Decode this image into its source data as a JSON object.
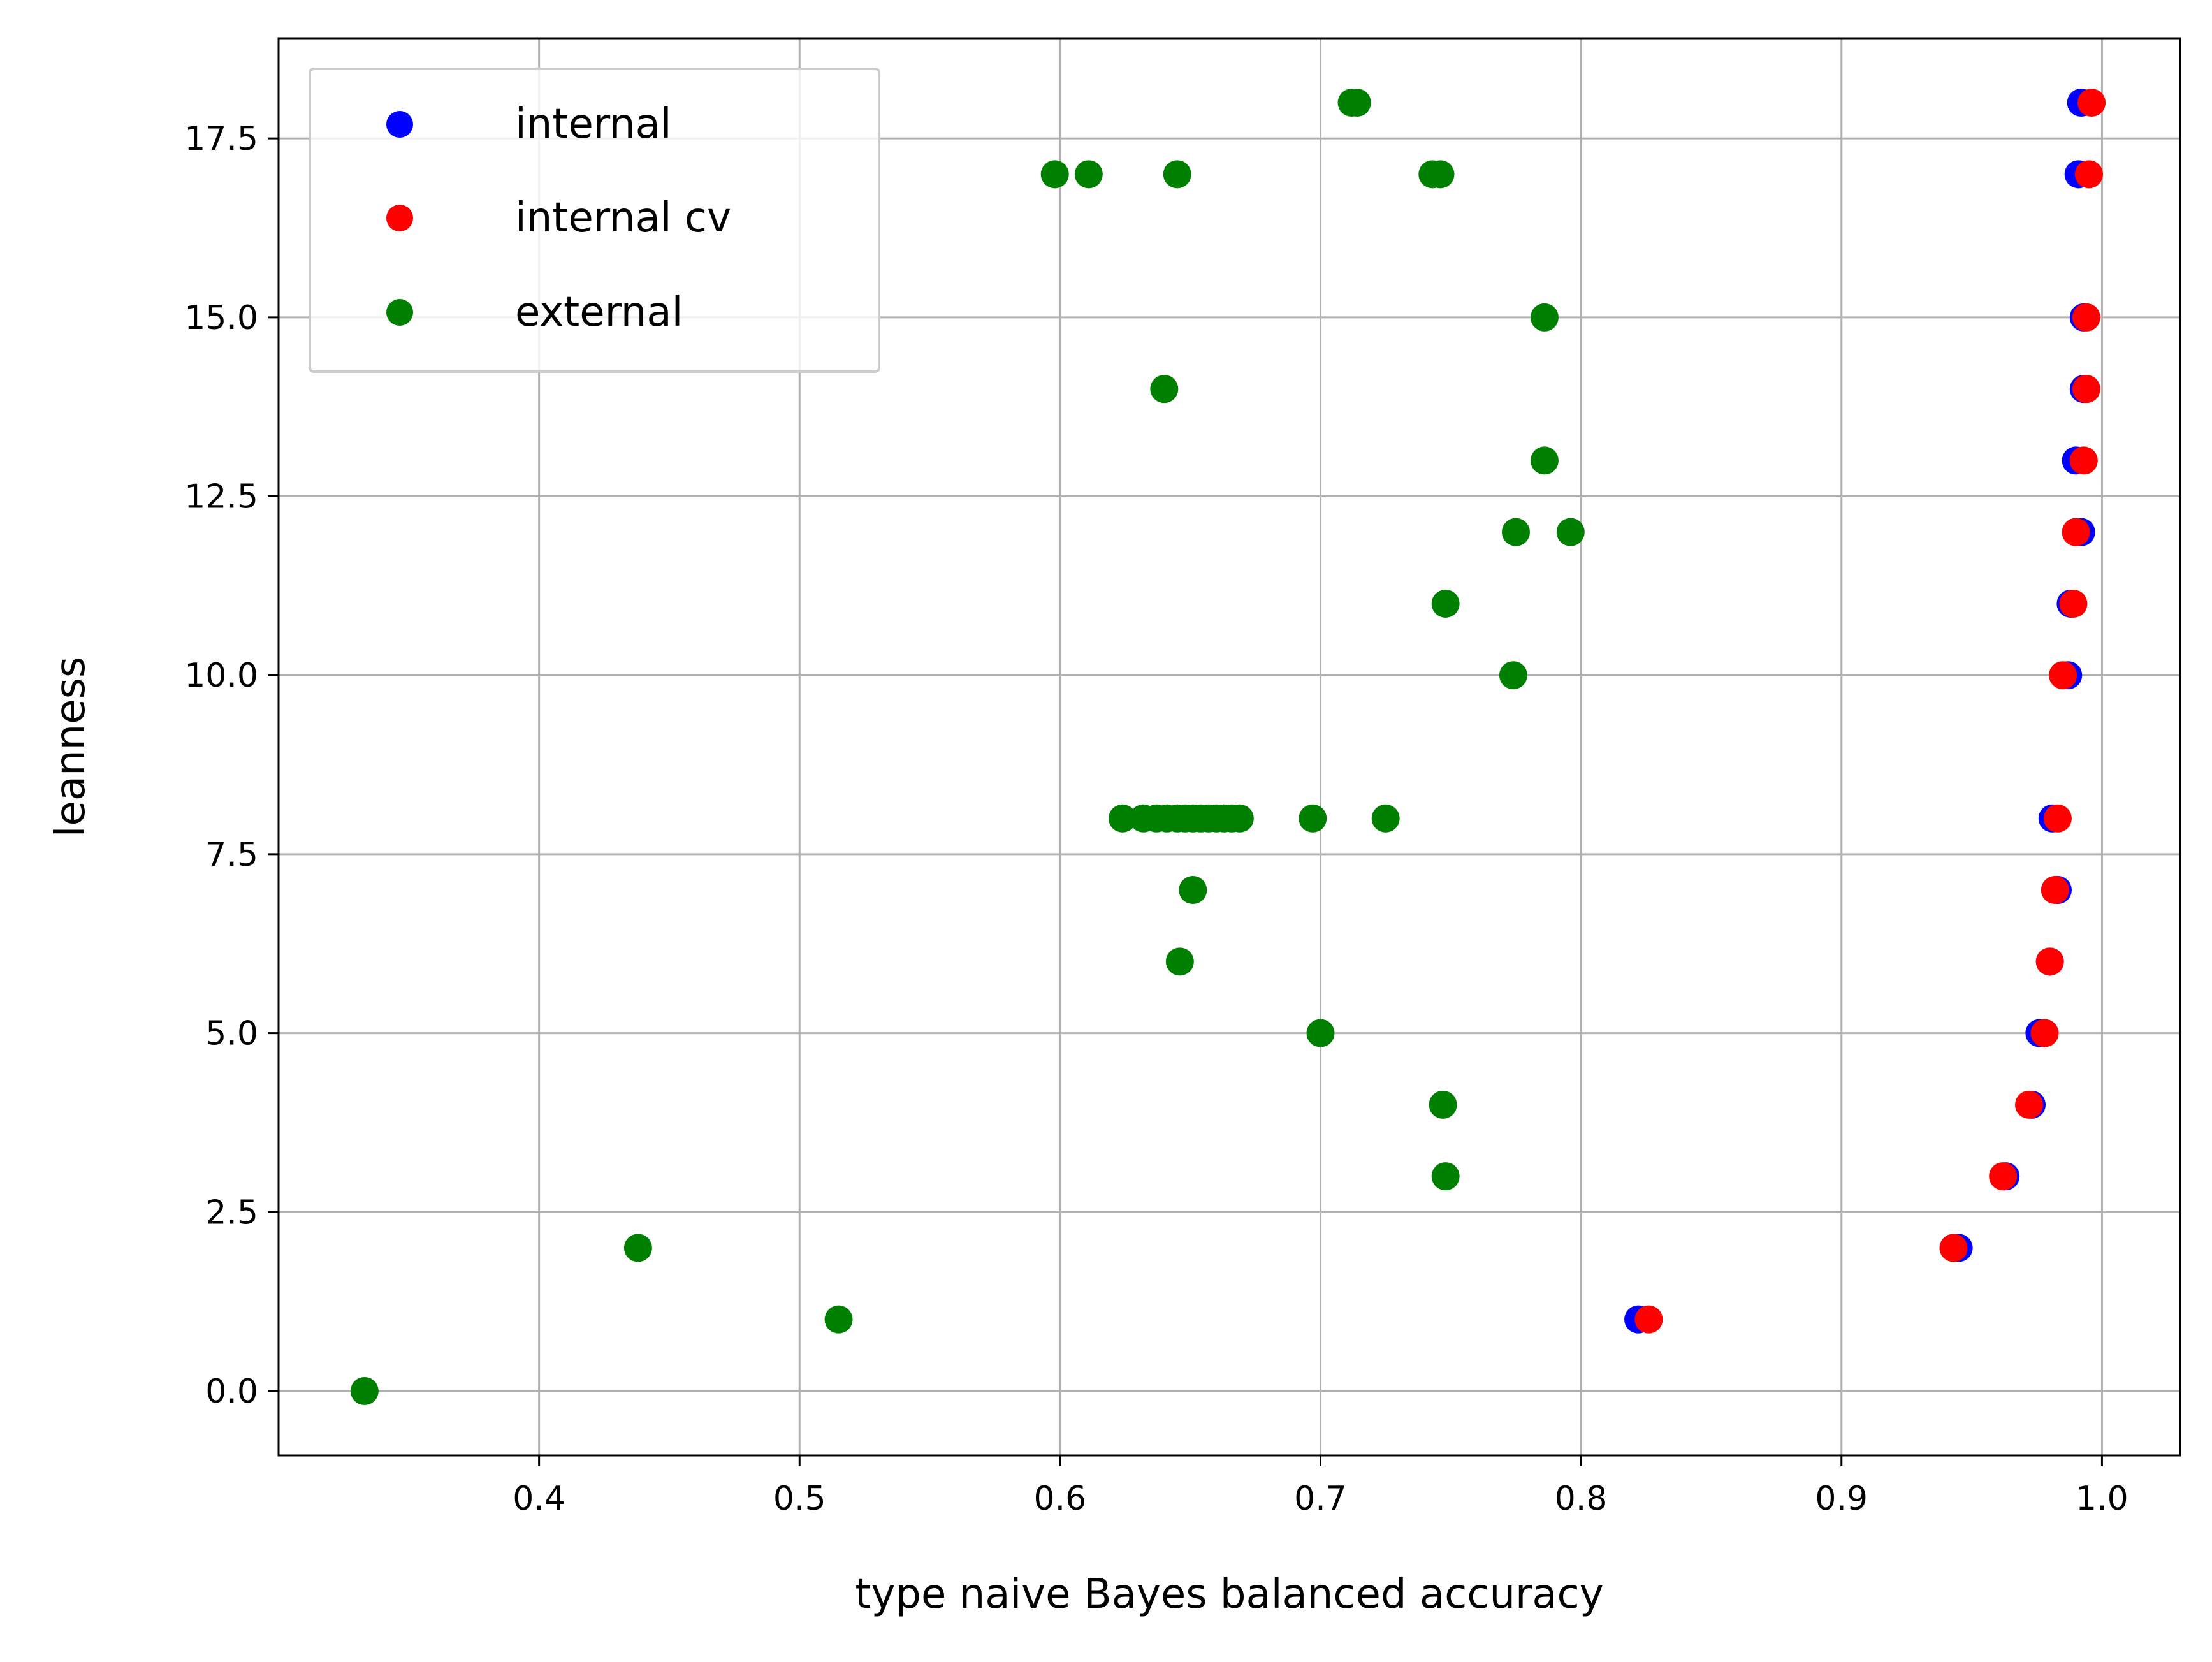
{
  "chart_data": {
    "type": "scatter",
    "xlabel": "type naive Bayes balanced accuracy",
    "ylabel": "leanness",
    "xlim": [
      0.3,
      1.03
    ],
    "ylim": [
      -0.9,
      18.9
    ],
    "x_ticks": [
      0.4,
      0.5,
      0.6,
      0.7,
      0.8,
      0.9,
      1.0
    ],
    "x_tick_labels": [
      "0.4",
      "0.5",
      "0.6",
      "0.7",
      "0.8",
      "0.9",
      "1.0"
    ],
    "y_ticks": [
      0.0,
      2.5,
      5.0,
      7.5,
      10.0,
      12.5,
      15.0,
      17.5
    ],
    "y_tick_labels": [
      "0.0",
      "2.5",
      "5.0",
      "7.5",
      "10.0",
      "12.5",
      "15.0",
      "17.5"
    ],
    "grid": true,
    "legend_position": "upper-left",
    "series": [
      {
        "name": "internal",
        "color": "#0000ff",
        "points": [
          [
            0.822,
            1
          ],
          [
            0.945,
            2
          ],
          [
            0.963,
            3
          ],
          [
            0.973,
            4
          ],
          [
            0.976,
            5
          ],
          [
            0.98,
            6
          ],
          [
            0.983,
            7
          ],
          [
            0.981,
            8
          ],
          [
            0.987,
            10
          ],
          [
            0.988,
            11
          ],
          [
            0.992,
            12
          ],
          [
            0.99,
            13
          ],
          [
            0.993,
            14
          ],
          [
            0.993,
            15
          ],
          [
            0.991,
            17
          ],
          [
            0.992,
            18
          ]
        ]
      },
      {
        "name": "internal cv",
        "color": "#ff0000",
        "points": [
          [
            0.826,
            1
          ],
          [
            0.943,
            2
          ],
          [
            0.962,
            3
          ],
          [
            0.972,
            4
          ],
          [
            0.978,
            5
          ],
          [
            0.98,
            6
          ],
          [
            0.982,
            7
          ],
          [
            0.983,
            8
          ],
          [
            0.985,
            10
          ],
          [
            0.989,
            11
          ],
          [
            0.99,
            12
          ],
          [
            0.993,
            13
          ],
          [
            0.994,
            14
          ],
          [
            0.994,
            15
          ],
          [
            0.995,
            17
          ],
          [
            0.996,
            18
          ]
        ]
      },
      {
        "name": "external",
        "color": "#008000",
        "points": [
          [
            0.333,
            0
          ],
          [
            0.515,
            1
          ],
          [
            0.438,
            2
          ],
          [
            0.748,
            3
          ],
          [
            0.747,
            4
          ],
          [
            0.7,
            5
          ],
          [
            0.646,
            6
          ],
          [
            0.651,
            7
          ],
          [
            0.624,
            8
          ],
          [
            0.632,
            8
          ],
          [
            0.637,
            8
          ],
          [
            0.641,
            8
          ],
          [
            0.645,
            8
          ],
          [
            0.648,
            8
          ],
          [
            0.651,
            8
          ],
          [
            0.654,
            8
          ],
          [
            0.657,
            8
          ],
          [
            0.66,
            8
          ],
          [
            0.663,
            8
          ],
          [
            0.666,
            8
          ],
          [
            0.669,
            8
          ],
          [
            0.697,
            8
          ],
          [
            0.725,
            8
          ],
          [
            0.774,
            10
          ],
          [
            0.748,
            11
          ],
          [
            0.775,
            12
          ],
          [
            0.796,
            12
          ],
          [
            0.786,
            13
          ],
          [
            0.64,
            14
          ],
          [
            0.786,
            15
          ],
          [
            0.598,
            17
          ],
          [
            0.611,
            17
          ],
          [
            0.645,
            17
          ],
          [
            0.743,
            17
          ],
          [
            0.746,
            17
          ],
          [
            0.712,
            18
          ],
          [
            0.714,
            18
          ]
        ]
      }
    ]
  }
}
